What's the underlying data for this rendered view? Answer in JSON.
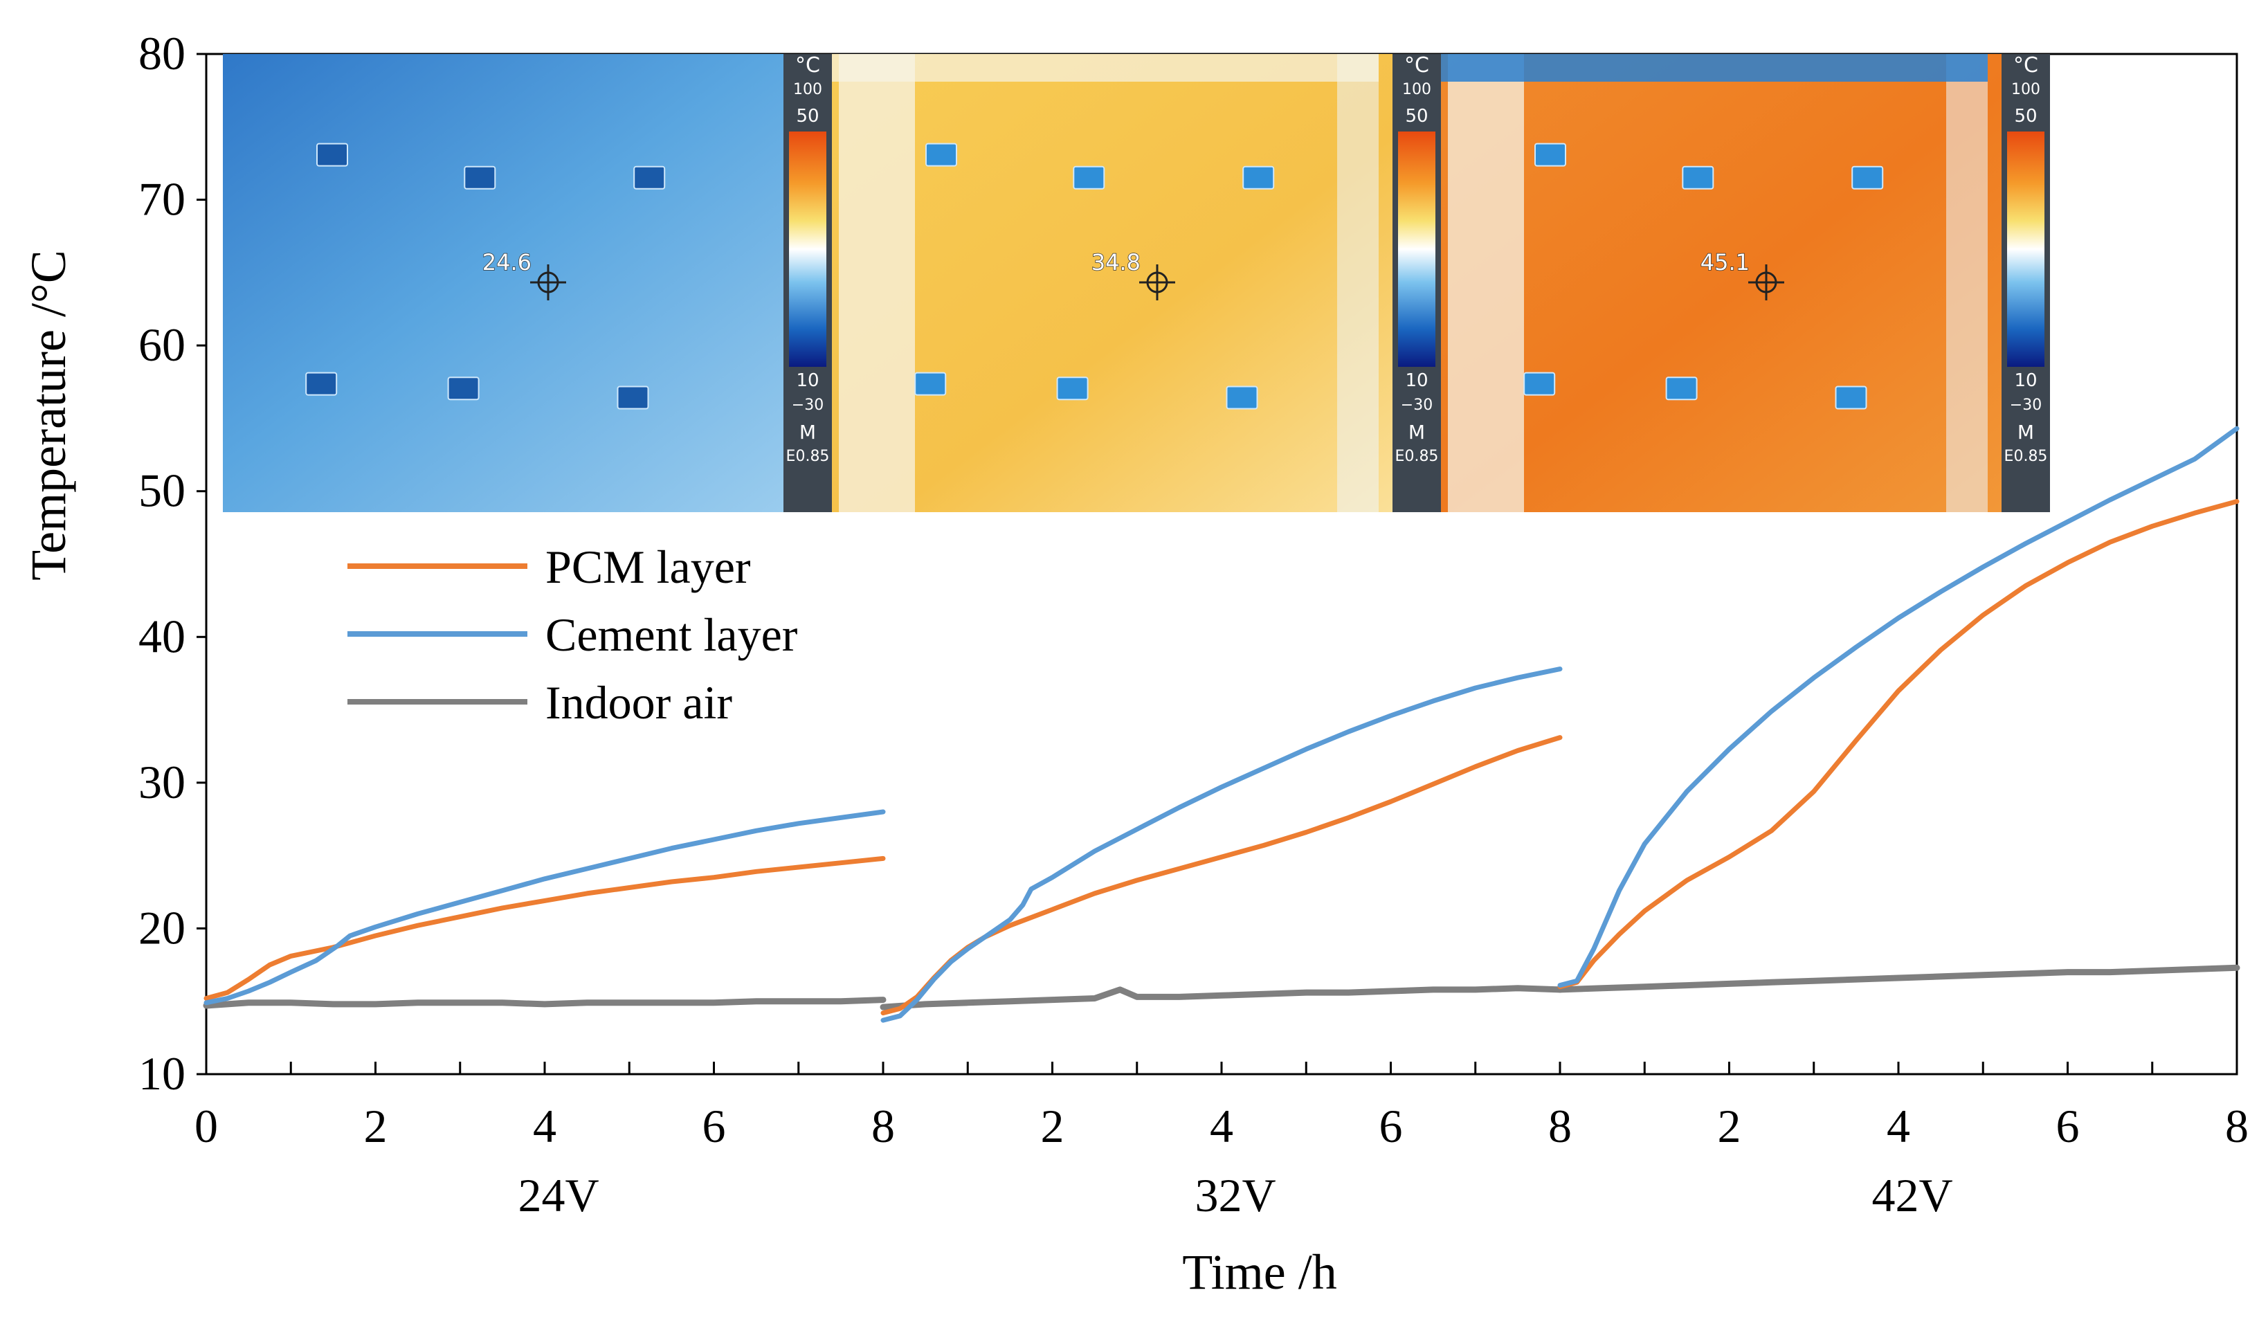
{
  "chart_data": {
    "type": "line",
    "title": "",
    "xlabel": "Time /h",
    "ylabel": "Temperature /°C",
    "ylim": [
      10,
      80
    ],
    "yticks": [
      10,
      20,
      30,
      40,
      50,
      60,
      70,
      80
    ],
    "x_unit_range": [
      0,
      8
    ],
    "x_tick_labels": [
      "0",
      "2",
      "4",
      "6",
      "8"
    ],
    "legend_location": "upper-left",
    "panels": [
      {
        "label": "24V",
        "series": [
          {
            "name": "PCM layer",
            "color": "#ED7D31",
            "x": [
              0,
              0.25,
              0.5,
              0.75,
              1,
              1.5,
              2,
              2.5,
              3,
              3.5,
              4,
              4.5,
              5,
              5.5,
              6,
              6.5,
              7,
              7.5,
              8
            ],
            "y": [
              15.2,
              15.6,
              16.5,
              17.5,
              18.1,
              18.7,
              19.5,
              20.2,
              20.8,
              21.4,
              21.9,
              22.4,
              22.8,
              23.2,
              23.5,
              23.9,
              24.2,
              24.5,
              24.8
            ]
          },
          {
            "name": "Cement layer",
            "color": "#5B9BD5",
            "x": [
              0,
              0.25,
              0.5,
              0.75,
              1,
              1.3,
              1.55,
              1.7,
              2,
              2.5,
              3,
              3.5,
              4,
              4.5,
              5,
              5.5,
              6,
              6.5,
              7,
              7.5,
              8
            ],
            "y": [
              14.9,
              15.2,
              15.7,
              16.3,
              17.0,
              17.8,
              18.8,
              19.5,
              20.1,
              21.0,
              21.8,
              22.6,
              23.4,
              24.1,
              24.8,
              25.5,
              26.1,
              26.7,
              27.2,
              27.6,
              28.0
            ]
          },
          {
            "name": "Indoor air",
            "color": "#7F7F7F",
            "x": [
              0,
              0.5,
              1,
              1.5,
              2,
              2.5,
              3,
              3.5,
              4,
              4.5,
              5,
              5.5,
              6,
              6.5,
              7,
              7.5,
              8
            ],
            "y": [
              14.7,
              14.9,
              14.9,
              14.8,
              14.8,
              14.9,
              14.9,
              14.9,
              14.8,
              14.9,
              14.9,
              14.9,
              14.9,
              15.0,
              15.0,
              15.0,
              15.1
            ]
          }
        ]
      },
      {
        "label": "32V",
        "series": [
          {
            "name": "PCM layer",
            "color": "#ED7D31",
            "x": [
              0,
              0.2,
              0.4,
              0.6,
              0.8,
              1,
              1.2,
              1.5,
              2,
              2.5,
              3,
              3.5,
              4,
              4.5,
              5,
              5.5,
              6,
              6.5,
              7,
              7.5,
              8
            ],
            "y": [
              14.2,
              14.5,
              15.3,
              16.6,
              17.8,
              18.7,
              19.4,
              20.2,
              21.3,
              22.4,
              23.3,
              24.1,
              24.9,
              25.7,
              26.6,
              27.6,
              28.7,
              29.9,
              31.1,
              32.2,
              33.1
            ]
          },
          {
            "name": "Cement layer",
            "color": "#5B9BD5",
            "x": [
              0,
              0.2,
              0.4,
              0.6,
              0.8,
              1,
              1.2,
              1.5,
              1.65,
              1.75,
              2,
              2.5,
              3,
              3.5,
              4,
              4.5,
              5,
              5.5,
              6,
              6.5,
              7,
              7.5,
              8
            ],
            "y": [
              13.7,
              14.0,
              15.1,
              16.5,
              17.7,
              18.6,
              19.4,
              20.6,
              21.6,
              22.7,
              23.5,
              25.3,
              26.8,
              28.3,
              29.7,
              31.0,
              32.3,
              33.5,
              34.6,
              35.6,
              36.5,
              37.2,
              37.8
            ]
          },
          {
            "name": "Indoor air",
            "color": "#7F7F7F",
            "x": [
              0,
              0.5,
              1,
              1.5,
              2,
              2.5,
              2.8,
              3,
              3.5,
              4,
              4.5,
              5,
              5.5,
              6,
              6.5,
              7,
              7.5,
              8
            ],
            "y": [
              14.6,
              14.8,
              14.9,
              15.0,
              15.1,
              15.2,
              15.8,
              15.3,
              15.3,
              15.4,
              15.5,
              15.6,
              15.6,
              15.7,
              15.8,
              15.8,
              15.9,
              15.8
            ]
          }
        ]
      },
      {
        "label": "42V",
        "series": [
          {
            "name": "PCM layer",
            "color": "#ED7D31",
            "x": [
              0,
              0.2,
              0.4,
              0.7,
              1,
              1.5,
              2,
              2.5,
              3,
              3.5,
              4,
              4.5,
              5,
              5.5,
              6,
              6.5,
              7,
              7.5,
              8
            ],
            "y": [
              16.0,
              16.3,
              17.8,
              19.6,
              21.2,
              23.3,
              24.9,
              26.7,
              29.4,
              32.9,
              36.3,
              39.1,
              41.5,
              43.5,
              45.1,
              46.5,
              47.6,
              48.5,
              49.3
            ]
          },
          {
            "name": "Cement layer",
            "color": "#5B9BD5",
            "x": [
              0,
              0.2,
              0.4,
              0.7,
              1,
              1.5,
              2,
              2.5,
              3,
              3.5,
              4,
              4.5,
              5,
              5.5,
              6,
              6.5,
              7,
              7.5,
              8
            ],
            "y": [
              16.1,
              16.4,
              18.6,
              22.6,
              25.8,
              29.4,
              32.3,
              34.9,
              37.2,
              39.3,
              41.3,
              43.1,
              44.8,
              46.4,
              47.9,
              49.4,
              50.8,
              52.2,
              54.3
            ]
          },
          {
            "name": "Indoor air",
            "color": "#7F7F7F",
            "x": [
              0,
              0.5,
              1,
              1.5,
              2,
              2.5,
              3,
              3.5,
              4,
              4.5,
              5,
              5.5,
              6,
              6.5,
              7,
              7.5,
              8
            ],
            "y": [
              15.8,
              15.9,
              16.0,
              16.1,
              16.2,
              16.3,
              16.4,
              16.5,
              16.6,
              16.7,
              16.8,
              16.9,
              17.0,
              17.0,
              17.1,
              17.2,
              17.3
            ]
          }
        ]
      }
    ],
    "legend": [
      {
        "name": "PCM layer",
        "color": "#ED7D31"
      },
      {
        "name": "Cement layer",
        "color": "#5B9BD5"
      },
      {
        "name": "Indoor air",
        "color": "#7F7F7F"
      }
    ],
    "inset_images": [
      {
        "panel": "24V",
        "readout": "24.6",
        "scale_unit": "°C",
        "scale_top": "100",
        "scale_max": "50",
        "scale_min": "10",
        "scale_bottom": "−30",
        "mode": "M",
        "emissivity": "E0.85",
        "palette": "cold"
      },
      {
        "panel": "32V",
        "readout": "34.8",
        "scale_unit": "°C",
        "scale_top": "100",
        "scale_max": "50",
        "scale_min": "10",
        "scale_bottom": "−30",
        "mode": "M",
        "emissivity": "E0.85",
        "palette": "warm"
      },
      {
        "panel": "42V",
        "readout": "45.1",
        "scale_unit": "°C",
        "scale_top": "100",
        "scale_max": "50",
        "scale_min": "10",
        "scale_bottom": "−30",
        "mode": "M",
        "emissivity": "E0.85",
        "palette": "hot"
      }
    ]
  }
}
